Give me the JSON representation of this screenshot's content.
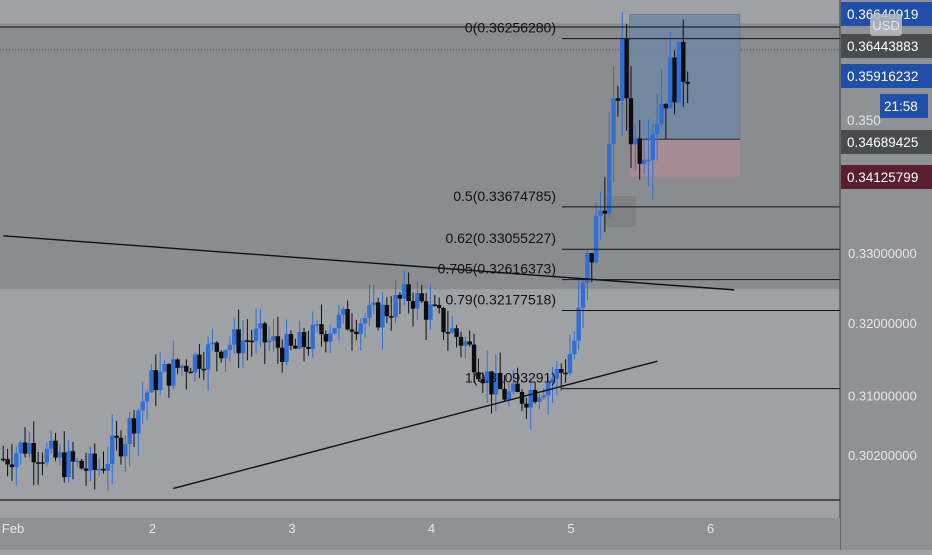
{
  "colors": {
    "background": "#9fa1a4",
    "zone_dark": "#8a8c90",
    "up_candle": "#2f6fd6",
    "down_candle": "#0d0d10",
    "axis_bg": "#8f9194",
    "tag_blue": "#1f4fa8",
    "tag_grey": "#4a4b4f",
    "tag_maroon": "#5a1e2e",
    "position_target": "#6f86a3",
    "position_stop": "#a88b96"
  },
  "chart_data": {
    "type": "candlestick",
    "instrument": "",
    "y_axis": {
      "log_scale": true,
      "ticks": [
        {
          "value": 0.33,
          "label": "0.33000000"
        },
        {
          "value": 0.32,
          "label": "0.32000000"
        },
        {
          "value": 0.31,
          "label": "0.31000000"
        },
        {
          "value": 0.302,
          "label": "0.30200000"
        }
      ],
      "currency_badge": "USD"
    },
    "x_axis": {
      "ticks": [
        {
          "day": 1,
          "label": "Feb"
        },
        {
          "day": 2,
          "label": "2"
        },
        {
          "day": 3,
          "label": "3"
        },
        {
          "day": 4,
          "label": "4"
        },
        {
          "day": 5,
          "label": "5"
        },
        {
          "day": 6,
          "label": "6"
        }
      ]
    },
    "fib_levels": [
      {
        "ratio": "0",
        "price": 0.3625628,
        "label": "0(0.36256280)"
      },
      {
        "ratio": "0.5",
        "price": 0.33674785,
        "label": "0.5(0.33674785)"
      },
      {
        "ratio": "0.62",
        "price": 0.33055227,
        "label": "0.62(0.33055227)"
      },
      {
        "ratio": "0.705",
        "price": 0.32616373,
        "label": "0.705(0.32616373)"
      },
      {
        "ratio": "0.79",
        "price": 0.32177518,
        "label": "0.79(0.32177518)"
      },
      {
        "ratio": "1",
        "price": 0.31093291,
        "label": "1(0.31093291)"
      }
    ],
    "price_tags": [
      {
        "label": "0.36640919",
        "kind": "blue"
      },
      {
        "label": "0.36443883",
        "kind": "grey"
      },
      {
        "label": "0.35916232",
        "kind": "blue"
      },
      {
        "label": "21:58",
        "kind": "blue"
      },
      {
        "label": "0.350",
        "kind": "plain"
      },
      {
        "label": "0.34689425",
        "kind": "grey"
      },
      {
        "label": "0.34125799",
        "kind": "maroon"
      }
    ],
    "trendlines": [
      {
        "from": {
          "day": 0.93,
          "price": 0.3325
        },
        "to": {
          "day": 6.17,
          "price": 0.3247
        }
      },
      {
        "from": {
          "day": 2.15,
          "price": 0.2976
        },
        "to": {
          "day": 5.62,
          "price": 0.3147
        }
      }
    ],
    "zones": [
      {
        "price_top": 0.365,
        "price_bottom": 0.3248,
        "kind": "dark"
      }
    ],
    "position": {
      "day_start": 5.42,
      "day_end": 6.21,
      "target_price": 0.36640919,
      "entry_price": 0.34689425,
      "stop_price": 0.34125799
    },
    "candles_summary": {
      "start_day": 0.93,
      "end_day": 5.85,
      "start_price": 0.302,
      "end_price": 0.35916232
    }
  }
}
